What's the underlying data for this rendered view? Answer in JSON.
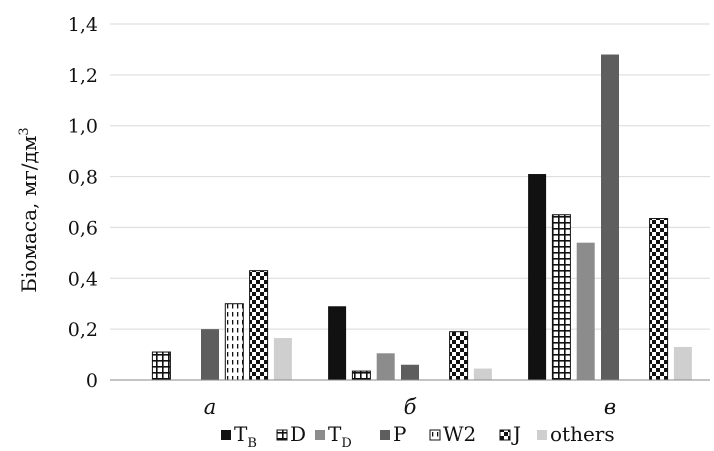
{
  "chart_data": {
    "type": "bar",
    "categories": [
      "а",
      "б",
      "в"
    ],
    "series": [
      {
        "name": "T",
        "name_sub": "B",
        "values": [
          0.0,
          0.29,
          0.81
        ],
        "color": "#111111",
        "pattern": "solid-black"
      },
      {
        "name": "D",
        "name_sub": "",
        "values": [
          0.11,
          0.035,
          0.65
        ],
        "color": "#111111",
        "pattern": "grid"
      },
      {
        "name": "T",
        "name_sub": "D",
        "values": [
          0.0,
          0.105,
          0.54
        ],
        "color": "#8a8a8a",
        "pattern": "solid-gray"
      },
      {
        "name": "P",
        "name_sub": "",
        "values": [
          0.2,
          0.06,
          1.28
        ],
        "color": "#5e5e5e",
        "pattern": "solid-darkgray"
      },
      {
        "name": "W2",
        "name_sub": "",
        "values": [
          0.3,
          0.0,
          0.0
        ],
        "color": "#111111",
        "pattern": "vertical-dashes"
      },
      {
        "name": "J",
        "name_sub": "",
        "values": [
          0.43,
          0.19,
          0.635
        ],
        "color": "#111111",
        "pattern": "checker"
      },
      {
        "name": "others",
        "name_sub": "",
        "values": [
          0.165,
          0.045,
          0.13
        ],
        "color": "#cccccc",
        "pattern": "solid-lightgray"
      }
    ],
    "ylabel": "Біомаса, мг/дм",
    "ylabel_sup": "3",
    "ylim": [
      0,
      1.4
    ],
    "yticks": [
      0,
      0.2,
      0.4,
      0.6,
      0.8,
      1.0,
      1.2,
      1.4
    ],
    "ytick_labels": [
      "0",
      "0,2",
      "0,4",
      "0,6",
      "0,8",
      "1,0",
      "1,2",
      "1,4"
    ],
    "grid": true,
    "legend_position": "bottom"
  }
}
